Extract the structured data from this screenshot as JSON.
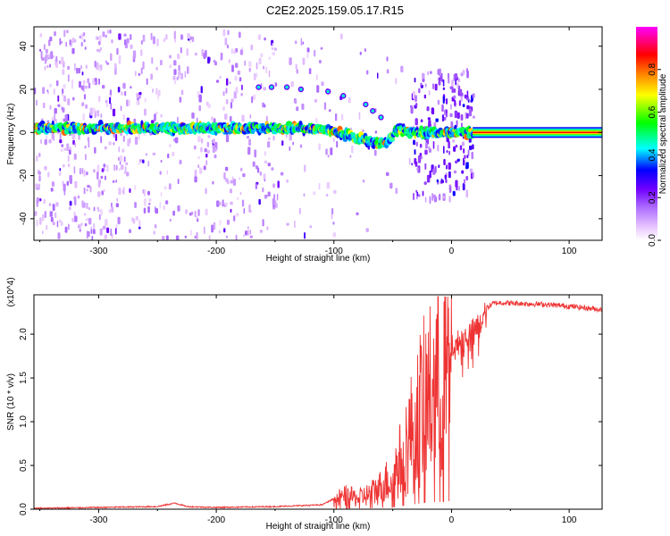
{
  "page": {
    "title": "C2E2.2025.159.05.17.R15"
  },
  "chart_data": [
    {
      "type": "heatmap",
      "title": "C2E2.2025.159.05.17.R15",
      "xlabel": "Height of straight line (km)",
      "ylabel": "Frequency (Hz)",
      "xlim": [
        -355,
        128
      ],
      "ylim": [
        -50,
        49
      ],
      "xticks": [
        -300,
        -200,
        -100,
        0,
        100
      ],
      "yticks": [
        -40,
        -20,
        0,
        20,
        40
      ],
      "colorbar": {
        "label": "Normalized spectral amplitude",
        "range": [
          0,
          1
        ],
        "ticks": [
          0.0,
          0.2,
          0.4,
          0.6,
          0.8
        ],
        "colormap": [
          "#ffffff",
          "#dda0ff",
          "#8a00ff",
          "#0000ff",
          "#00ffff",
          "#00ff00",
          "#ffff00",
          "#ff8000",
          "#ff0000",
          "#ff00ff"
        ]
      },
      "main_track": {
        "description_points_x": [
          -355,
          -250,
          -150,
          -110,
          -90,
          -75,
          -65,
          -55,
          -45,
          -35,
          -20,
          0,
          18
        ],
        "description_points_y": [
          2,
          2,
          2,
          2,
          -1,
          -3,
          -5,
          -5,
          2,
          0,
          0,
          0,
          0
        ],
        "uniform_band_from_x": 18,
        "uniform_band_y": 0
      },
      "harmonic_points": {
        "x": [
          -164,
          -153,
          -140,
          -128,
          -105,
          -92,
          -73,
          -67,
          -60
        ],
        "y": [
          21,
          21,
          21,
          20,
          19,
          17,
          13,
          10,
          7
        ]
      },
      "grid": false
    },
    {
      "type": "line",
      "xlabel": "Height of straight line (km)",
      "ylabel": "SNR (10 * v/v)",
      "scale_label": "(x10^4)",
      "xlim": [
        -355,
        128
      ],
      "ylim": [
        0,
        2.45
      ],
      "xticks": [
        -300,
        -200,
        -100,
        0,
        100
      ],
      "yticks": [
        0.0,
        0.5,
        1.0,
        1.5,
        2.0
      ],
      "series": [
        {
          "color": "#ee3333",
          "envelope_x": [
            -355,
            -300,
            -250,
            -235,
            -225,
            -200,
            -150,
            -110,
            -100,
            -90,
            -80,
            -70,
            -60,
            -50,
            -45,
            -40,
            -35,
            -30,
            -25,
            -20,
            -15,
            -10,
            -5,
            0,
            5,
            10,
            15,
            20,
            25,
            30,
            35,
            40,
            60,
            80,
            100,
            128
          ],
          "envelope_y": [
            0.01,
            0.02,
            0.03,
            0.07,
            0.03,
            0.02,
            0.03,
            0.05,
            0.12,
            0.18,
            0.15,
            0.2,
            0.3,
            0.45,
            0.6,
            0.8,
            1.0,
            1.2,
            1.4,
            1.5,
            1.6,
            1.7,
            1.8,
            1.9,
            1.95,
            2.0,
            2.05,
            2.1,
            2.2,
            2.3,
            2.35,
            2.36,
            2.35,
            2.34,
            2.32,
            2.28
          ]
        }
      ],
      "grid": false
    }
  ]
}
